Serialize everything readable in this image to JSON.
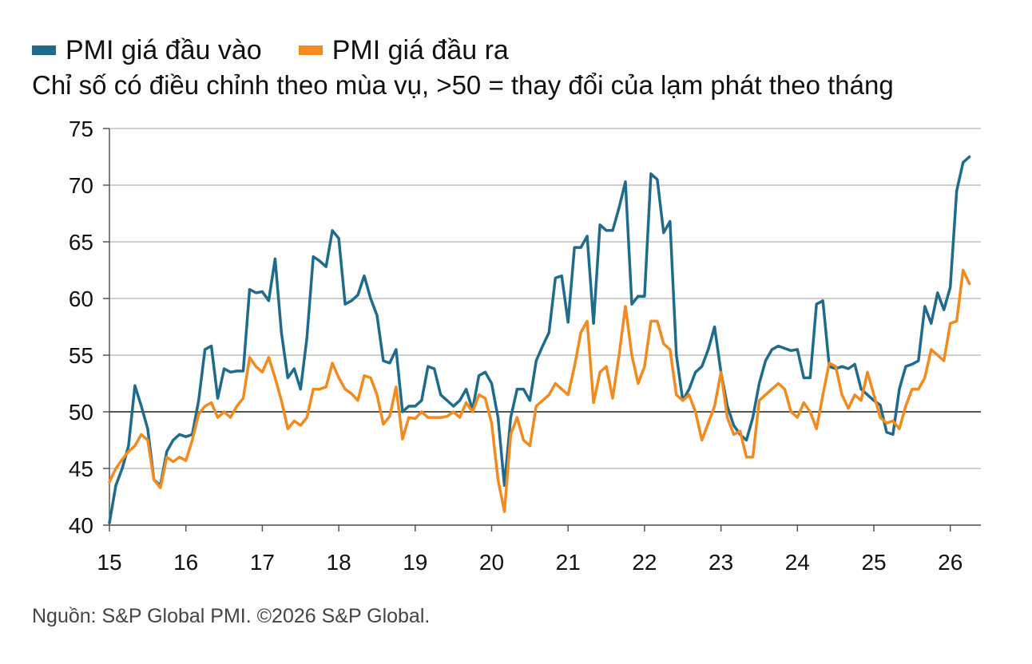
{
  "legend": {
    "input_label": "PMI giá đầu vào",
    "output_label": "PMI giá đầu ra"
  },
  "subtitle": "Chỉ số có điều chỉnh theo mùa vụ, >50 = thay đổi của lạm phát theo tháng",
  "source": "Nguồn: S&P Global PMI. ©2026 S&P Global.",
  "colors": {
    "input": "#1f6b8c",
    "output": "#f28a1e",
    "grid": "#bfbfbf",
    "baseline": "#555555"
  },
  "chart_data": {
    "type": "line",
    "ylim": [
      40,
      75
    ],
    "yticks": [
      "40",
      "45",
      "50",
      "55",
      "60",
      "65",
      "70",
      "75"
    ],
    "xticks": [
      "15",
      "16",
      "17",
      "18",
      "19",
      "20",
      "21",
      "22",
      "23",
      "24",
      "25",
      "26"
    ],
    "reference_line": 50,
    "grid": true,
    "legend_position": "top-left",
    "x_start": 2015.0,
    "x_step": 0.0833333,
    "series": [
      {
        "name": "PMI giá đầu vào",
        "values": [
          40.2,
          43.5,
          45.0,
          47.0,
          52.3,
          50.5,
          48.5,
          44.0,
          43.5,
          46.5,
          47.5,
          48.0,
          47.8,
          48.0,
          51.0,
          55.5,
          55.8,
          51.2,
          53.8,
          53.5,
          53.6,
          53.6,
          60.8,
          60.5,
          60.6,
          59.8,
          63.5,
          57.0,
          53.0,
          53.8,
          52.0,
          56.5,
          63.7,
          63.3,
          62.8,
          66.0,
          65.3,
          59.5,
          59.8,
          60.3,
          62.0,
          60.0,
          58.5,
          54.5,
          54.3,
          55.5,
          50.0,
          50.5,
          50.5,
          51.0,
          54.0,
          53.8,
          51.5,
          51.0,
          50.5,
          51.0,
          52.0,
          50.2,
          53.2,
          53.5,
          52.5,
          49.5,
          43.5,
          49.5,
          52.0,
          52.0,
          51.0,
          54.5,
          55.8,
          57.0,
          61.8,
          62.0,
          57.9,
          64.5,
          64.5,
          65.5,
          57.8,
          66.5,
          66.0,
          66.0,
          68.0,
          70.3,
          59.5,
          60.2,
          60.2,
          71.0,
          70.5,
          65.8,
          66.8,
          55.0,
          51.0,
          52.0,
          53.5,
          54.0,
          55.5,
          57.5,
          53.5,
          50.5,
          48.8,
          48.0,
          47.5,
          49.5,
          52.5,
          54.5,
          55.5,
          55.8,
          55.6,
          55.4,
          55.5,
          53.0,
          53.0,
          59.5,
          59.8,
          54.0,
          53.8,
          54.0,
          53.8,
          54.2,
          52.0,
          51.5,
          51.0,
          50.6,
          48.2,
          48.0,
          52.0,
          54.0,
          54.2,
          54.5,
          59.3,
          57.8,
          60.5,
          59.0,
          61.0,
          69.5,
          72.0,
          72.5
        ]
      },
      {
        "name": "PMI giá đầu ra",
        "values": [
          43.8,
          45.0,
          45.8,
          46.5,
          47.0,
          48.0,
          47.5,
          44.0,
          43.3,
          46.0,
          45.6,
          46.0,
          45.7,
          47.5,
          49.8,
          50.5,
          50.8,
          49.5,
          50.0,
          49.5,
          50.5,
          51.2,
          54.8,
          54.0,
          53.5,
          54.8,
          53.0,
          51.0,
          48.5,
          49.2,
          48.8,
          49.5,
          52.0,
          52.0,
          52.2,
          54.3,
          53.0,
          52.0,
          51.6,
          51.0,
          53.2,
          53.0,
          51.5,
          48.9,
          49.6,
          52.2,
          47.6,
          49.5,
          49.4,
          50.0,
          49.5,
          49.5,
          49.5,
          49.6,
          50.0,
          49.5,
          50.8,
          50.0,
          51.5,
          51.2,
          49.0,
          44.0,
          41.2,
          48.0,
          49.5,
          47.5,
          47.0,
          50.5,
          51.0,
          51.5,
          52.5,
          52.0,
          51.5,
          54.0,
          57.0,
          58.0,
          50.8,
          53.5,
          54.0,
          51.2,
          55.0,
          59.3,
          55.0,
          52.5,
          54.0,
          58.0,
          58.0,
          56.0,
          55.5,
          51.5,
          51.0,
          51.5,
          50.0,
          47.5,
          49.0,
          50.5,
          53.5,
          49.5,
          48.0,
          48.3,
          46.0,
          46.0,
          51.0,
          51.5,
          52.0,
          52.5,
          52.0,
          50.0,
          49.5,
          50.8,
          50.0,
          48.5,
          51.5,
          54.3,
          54.0,
          51.5,
          50.3,
          51.5,
          51.0,
          53.5,
          51.5,
          49.5,
          49.0,
          49.2,
          48.5,
          50.5,
          52.0,
          52.0,
          53.0,
          55.5,
          55.0,
          54.5,
          57.8,
          58.0,
          62.5,
          61.3
        ]
      }
    ]
  }
}
